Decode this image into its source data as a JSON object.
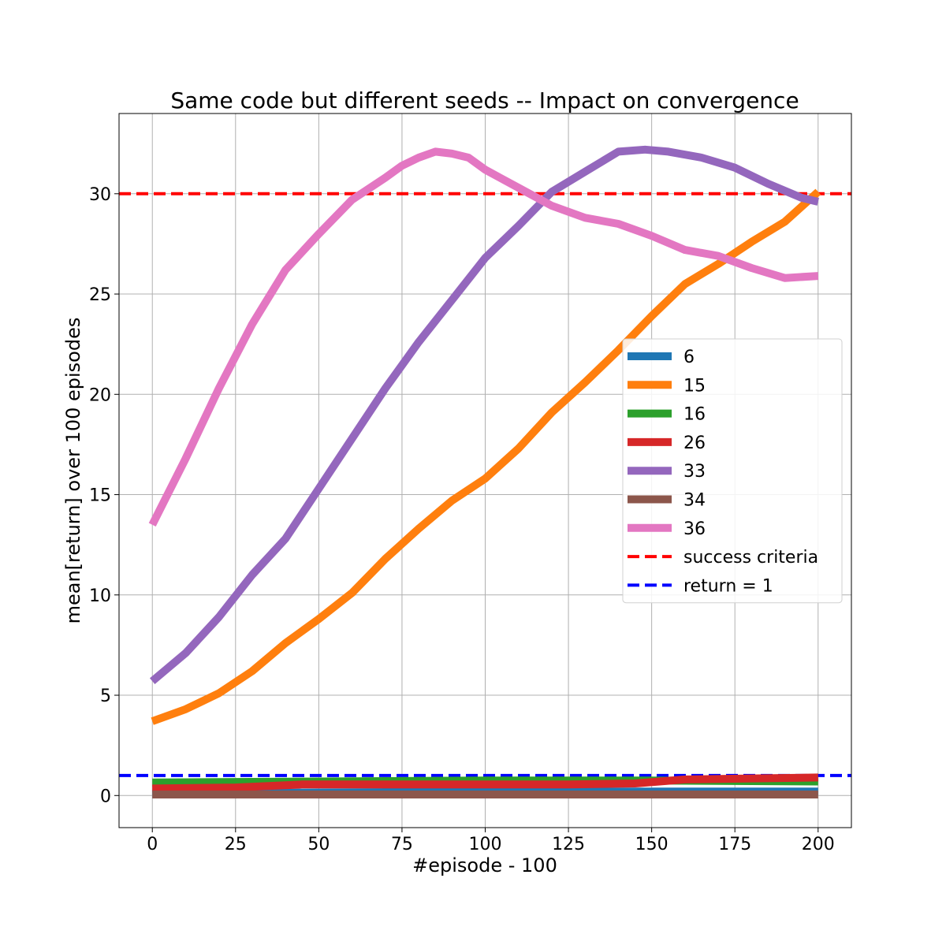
{
  "chart_data": {
    "type": "line",
    "title": "Same code but different seeds -- Impact on convergence",
    "xlabel": "#episode - 100",
    "ylabel": "mean[return] over 100 episodes",
    "xlim": [
      -10,
      210
    ],
    "ylim": [
      -1.6,
      34.0
    ],
    "xticks": [
      0,
      25,
      50,
      75,
      100,
      125,
      150,
      175,
      200
    ],
    "yticks": [
      0,
      5,
      10,
      15,
      20,
      25,
      30
    ],
    "grid": true,
    "legend_position": "center-right",
    "series": [
      {
        "name": "6",
        "color": "#1f77b4",
        "x": [
          0,
          50,
          100,
          150,
          200
        ],
        "y": [
          0.1,
          0.15,
          0.2,
          0.2,
          0.2
        ]
      },
      {
        "name": "15",
        "color": "#ff7f0e",
        "x": [
          0,
          10,
          20,
          30,
          40,
          50,
          60,
          70,
          80,
          90,
          100,
          110,
          120,
          130,
          140,
          150,
          160,
          170,
          180,
          190,
          200
        ],
        "y": [
          3.7,
          4.3,
          5.1,
          6.2,
          7.6,
          8.8,
          10.1,
          11.8,
          13.3,
          14.7,
          15.8,
          17.3,
          19.1,
          20.6,
          22.2,
          23.9,
          25.5,
          26.5,
          27.6,
          28.6,
          30.1
        ]
      },
      {
        "name": "16",
        "color": "#2ca02c",
        "x": [
          0,
          50,
          100,
          150,
          200
        ],
        "y": [
          0.65,
          0.7,
          0.75,
          0.75,
          0.7
        ]
      },
      {
        "name": "26",
        "color": "#d62728",
        "x": [
          0,
          25,
          45,
          75,
          100,
          125,
          145,
          160,
          180,
          200
        ],
        "y": [
          0.35,
          0.4,
          0.55,
          0.55,
          0.55,
          0.55,
          0.6,
          0.8,
          0.85,
          0.9
        ]
      },
      {
        "name": "33",
        "color": "#9467bd",
        "x": [
          0,
          10,
          20,
          30,
          40,
          50,
          60,
          70,
          80,
          90,
          100,
          110,
          120,
          130,
          140,
          148,
          155,
          165,
          175,
          185,
          195,
          200
        ],
        "y": [
          5.7,
          7.1,
          8.9,
          11.0,
          12.8,
          15.3,
          17.8,
          20.3,
          22.6,
          24.7,
          26.8,
          28.4,
          30.1,
          31.1,
          32.1,
          32.2,
          32.1,
          31.8,
          31.3,
          30.5,
          29.8,
          29.6
        ]
      },
      {
        "name": "34",
        "color": "#8c564b",
        "x": [
          0,
          50,
          100,
          150,
          200
        ],
        "y": [
          0.05,
          0.05,
          0.05,
          0.05,
          0.05
        ]
      },
      {
        "name": "36",
        "color": "#e377c2",
        "x": [
          0,
          10,
          20,
          30,
          40,
          50,
          60,
          70,
          75,
          80,
          85,
          90,
          95,
          100,
          110,
          120,
          130,
          140,
          150,
          160,
          170,
          180,
          190,
          200
        ],
        "y": [
          13.5,
          16.8,
          20.3,
          23.5,
          26.2,
          28.0,
          29.7,
          30.8,
          31.4,
          31.8,
          32.1,
          32.0,
          31.8,
          31.2,
          30.3,
          29.4,
          28.8,
          28.5,
          27.9,
          27.2,
          26.9,
          26.3,
          25.8,
          25.9
        ]
      }
    ],
    "reference_lines": [
      {
        "name": "success criteria",
        "y": 30,
        "color": "#ff0000",
        "dashed": true
      },
      {
        "name": "return = 1",
        "y": 1,
        "color": "#0000ff",
        "dashed": true
      }
    ]
  }
}
